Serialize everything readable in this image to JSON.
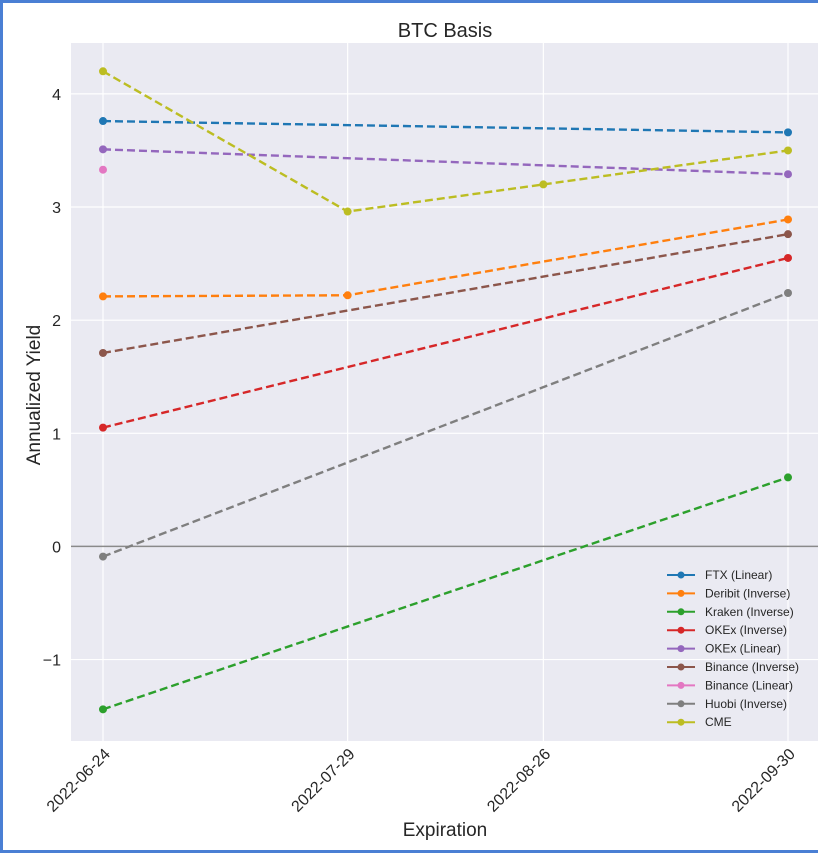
{
  "chart_data": {
    "type": "line",
    "title": "BTC Basis",
    "xlabel": "Expiration",
    "ylabel": "Annualized Yield",
    "categories": [
      "2022-06-24",
      "2022-07-29",
      "2022-08-26",
      "2022-09-30"
    ],
    "x_days": [
      0,
      35,
      63,
      98
    ],
    "ylim": [
      -1.72,
      4.45
    ],
    "yticks": [
      -1,
      0,
      1,
      2,
      3,
      4
    ],
    "grid": true,
    "zero_line": true,
    "legend_position": "bottom-right",
    "series": [
      {
        "name": "FTX (Linear)",
        "color": "#1f77b4",
        "points": [
          [
            "2022-06-24",
            3.76
          ],
          [
            "2022-09-30",
            3.66
          ]
        ]
      },
      {
        "name": "Deribit (Inverse)",
        "color": "#ff7f0e",
        "points": [
          [
            "2022-06-24",
            2.21
          ],
          [
            "2022-07-29",
            2.22
          ],
          [
            "2022-09-30",
            2.89
          ]
        ]
      },
      {
        "name": "Kraken (Inverse)",
        "color": "#2ca02c",
        "points": [
          [
            "2022-06-24",
            -1.44
          ],
          [
            "2022-09-30",
            0.61
          ]
        ]
      },
      {
        "name": "OKEx (Inverse)",
        "color": "#d62728",
        "points": [
          [
            "2022-06-24",
            1.05
          ],
          [
            "2022-09-30",
            2.55
          ]
        ]
      },
      {
        "name": "OKEx (Linear)",
        "color": "#9467bd",
        "points": [
          [
            "2022-06-24",
            3.51
          ],
          [
            "2022-09-30",
            3.29
          ]
        ]
      },
      {
        "name": "Binance (Inverse)",
        "color": "#8c564b",
        "points": [
          [
            "2022-06-24",
            1.71
          ],
          [
            "2022-09-30",
            2.76
          ]
        ]
      },
      {
        "name": "Binance (Linear)",
        "color": "#e377c2",
        "points": [
          [
            "2022-06-24",
            3.33
          ]
        ]
      },
      {
        "name": "Huobi (Inverse)",
        "color": "#7f7f7f",
        "points": [
          [
            "2022-06-24",
            -0.09
          ],
          [
            "2022-09-30",
            2.24
          ]
        ]
      },
      {
        "name": "CME",
        "color": "#bcbd22",
        "points": [
          [
            "2022-06-24",
            4.2
          ],
          [
            "2022-07-29",
            2.96
          ],
          [
            "2022-08-26",
            3.2
          ],
          [
            "2022-09-30",
            3.5
          ]
        ]
      }
    ]
  }
}
